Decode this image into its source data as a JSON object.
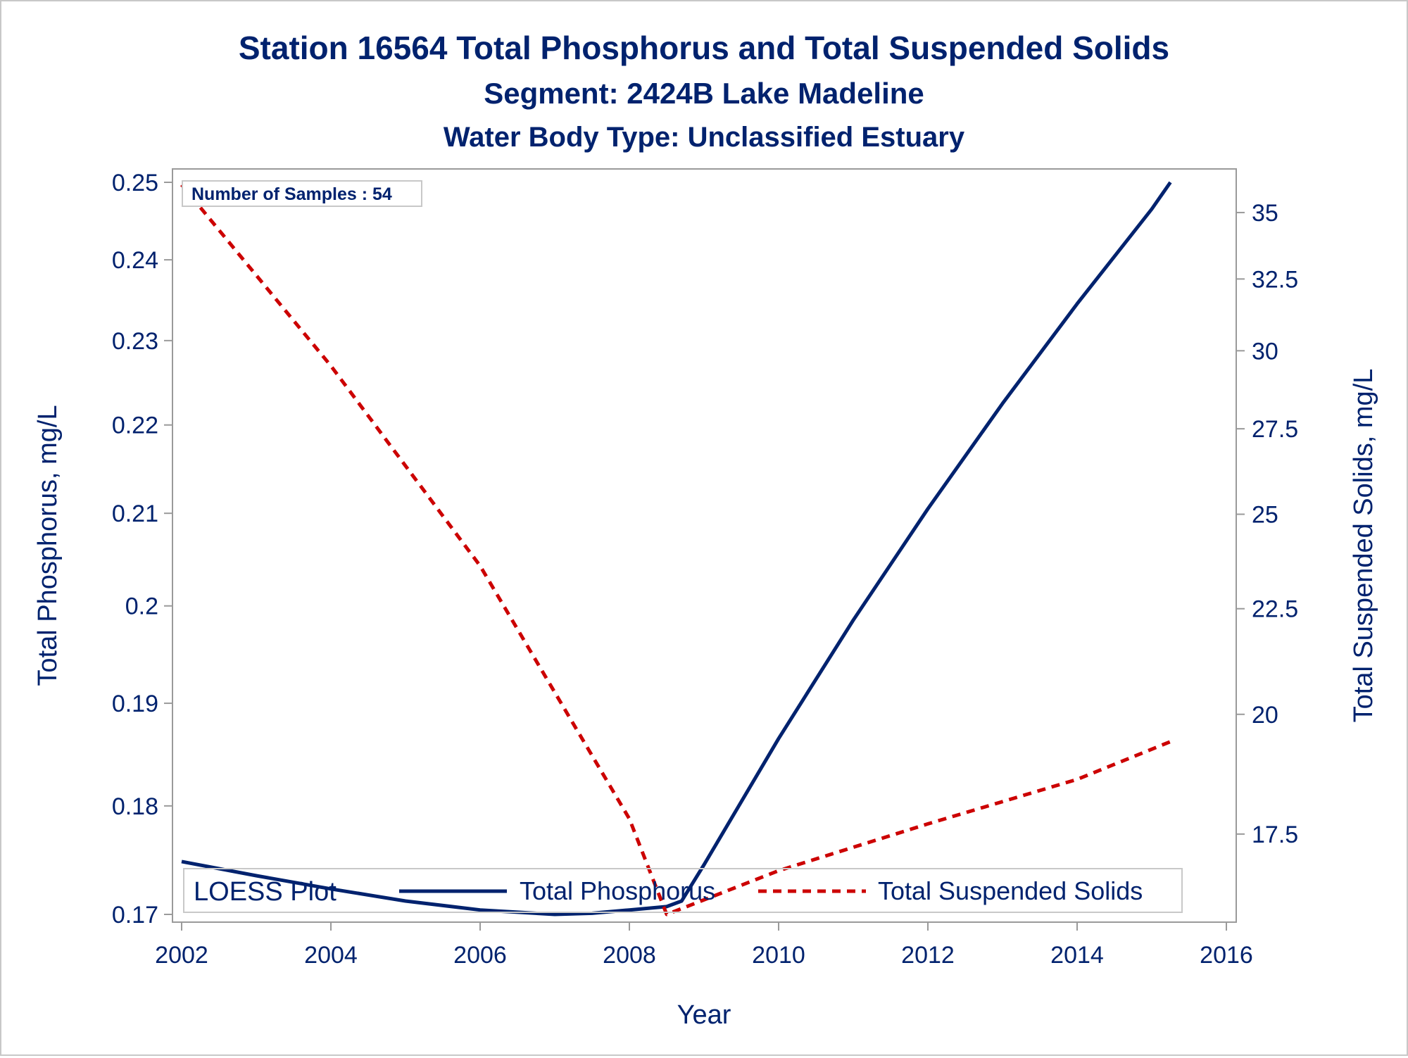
{
  "chart_data": {
    "type": "line",
    "title": "Station 16564  Total Phosphorus and Total Suspended Solids",
    "subtitle": "Segment: 2424B  Lake Madeline",
    "subtitle2": "Water Body Type: Unclassified Estuary",
    "xlabel": "Year",
    "ylabel": "Total Phosphorus, mg/L",
    "y2label": "Total Suspended Solids, mg/L",
    "xlim": [
      2002,
      2016
    ],
    "ylim": [
      0.17,
      0.25
    ],
    "y2lim": [
      16,
      36.2
    ],
    "y_scale": "log",
    "y2_scale": "log",
    "x_ticks": [
      "2002",
      "2004",
      "2006",
      "2008",
      "2010",
      "2012",
      "2014",
      "2016"
    ],
    "y_ticks": [
      "0.17",
      "0.18",
      "0.19",
      "0.2",
      "0.21",
      "0.22",
      "0.23",
      "0.24",
      "0.25"
    ],
    "y2_ticks": [
      "17.5",
      "20",
      "22.5",
      "25",
      "27.5",
      "30",
      "32.5",
      "35"
    ],
    "annotation": "Number of Samples : 54",
    "legend": {
      "title": "LOESS Plot",
      "position": "bottom-inside",
      "entries": [
        "Total Phosphorus",
        "Total Suspended Solids"
      ]
    },
    "series": [
      {
        "name": "Total Phosphorus",
        "axis": "left",
        "color": "#00226e",
        "style": "solid",
        "x": [
          2002.0,
          2003.0,
          2004.0,
          2005.0,
          2006.0,
          2007.0,
          2007.5,
          2008.0,
          2008.5,
          2008.7,
          2009.0,
          2010.0,
          2011.0,
          2012.0,
          2013.0,
          2014.0,
          2015.0,
          2015.25
        ],
        "y": [
          0.1748,
          0.1735,
          0.1723,
          0.1712,
          0.1704,
          0.17,
          0.1701,
          0.1704,
          0.1707,
          0.1712,
          0.1745,
          0.1865,
          0.1985,
          0.2105,
          0.2225,
          0.2345,
          0.2465,
          0.25
        ]
      },
      {
        "name": "Total Suspended Solids",
        "axis": "right",
        "color": "#cc0000",
        "style": "dashed",
        "x": [
          2002.0,
          2004.0,
          2006.0,
          2008.0,
          2008.5,
          2010.0,
          2012.0,
          2014.0,
          2015.25
        ],
        "y": [
          36.1,
          29.5,
          23.6,
          17.8,
          16.0,
          16.8,
          17.7,
          18.6,
          19.4
        ]
      }
    ]
  }
}
